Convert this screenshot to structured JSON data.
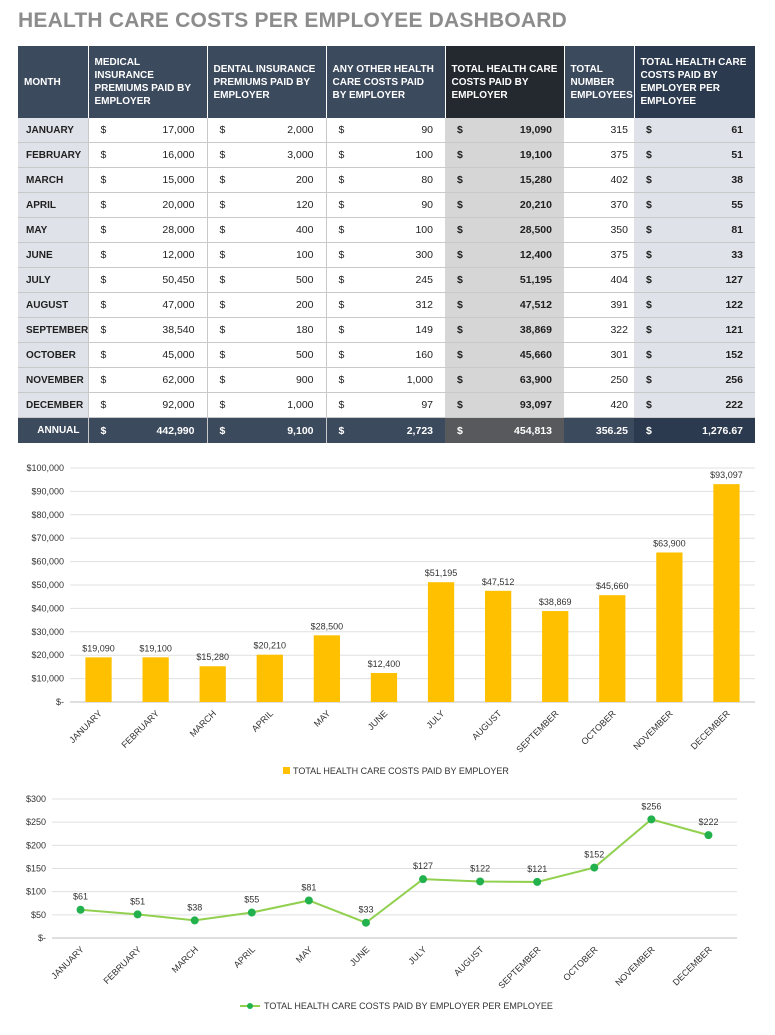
{
  "title": "HEALTH CARE COSTS PER EMPLOYEE DASHBOARD",
  "table": {
    "headers": [
      "MONTH",
      "MEDICAL INSURANCE PREMIUMS PAID BY EMPLOYER",
      "DENTAL INSURANCE PREMIUMS PAID BY EMPLOYER",
      "ANY OTHER HEALTH CARE COSTS PAID BY EMPLOYER",
      "TOTAL HEALTH CARE COSTS PAID BY EMPLOYER",
      "TOTAL NUMBER EMPLOYEES",
      "TOTAL HEALTH CARE COSTS PAID BY EMPLOYER PER EMPLOYEE"
    ],
    "currency": "$",
    "rows": [
      [
        "JANUARY",
        "17,000",
        "2,000",
        "90",
        "19,090",
        "315",
        "61"
      ],
      [
        "FEBRUARY",
        "16,000",
        "3,000",
        "100",
        "19,100",
        "375",
        "51"
      ],
      [
        "MARCH",
        "15,000",
        "200",
        "80",
        "15,280",
        "402",
        "38"
      ],
      [
        "APRIL",
        "20,000",
        "120",
        "90",
        "20,210",
        "370",
        "55"
      ],
      [
        "MAY",
        "28,000",
        "400",
        "100",
        "28,500",
        "350",
        "81"
      ],
      [
        "JUNE",
        "12,000",
        "100",
        "300",
        "12,400",
        "375",
        "33"
      ],
      [
        "JULY",
        "50,450",
        "500",
        "245",
        "51,195",
        "404",
        "127"
      ],
      [
        "AUGUST",
        "47,000",
        "200",
        "312",
        "47,512",
        "391",
        "122"
      ],
      [
        "SEPTEMBER",
        "38,540",
        "180",
        "149",
        "38,869",
        "322",
        "121"
      ],
      [
        "OCTOBER",
        "45,000",
        "500",
        "160",
        "45,660",
        "301",
        "152"
      ],
      [
        "NOVEMBER",
        "62,000",
        "900",
        "1,000",
        "63,900",
        "250",
        "256"
      ],
      [
        "DECEMBER",
        "92,000",
        "1,000",
        "97",
        "93,097",
        "420",
        "222"
      ]
    ],
    "annual": [
      "ANNUAL",
      "442,990",
      "9,100",
      "2,723",
      "454,813",
      "356.25",
      "1,276.67"
    ]
  },
  "chart_data": [
    {
      "type": "bar",
      "categories": [
        "JANUARY",
        "FEBRUARY",
        "MARCH",
        "APRIL",
        "MAY",
        "JUNE",
        "JULY",
        "AUGUST",
        "SEPTEMBER",
        "OCTOBER",
        "NOVEMBER",
        "DECEMBER"
      ],
      "values": [
        19090,
        19100,
        15280,
        20210,
        28500,
        12400,
        51195,
        47512,
        38869,
        45660,
        63900,
        93097
      ],
      "data_labels": [
        "$19,090",
        "$19,100",
        "$15,280",
        "$20,210",
        "$28,500",
        "$12,400",
        "$51,195",
        "$47,512",
        "$38,869",
        "$45,660",
        "$63,900",
        "$93,097"
      ],
      "yticks": [
        0,
        10000,
        20000,
        30000,
        40000,
        50000,
        60000,
        70000,
        80000,
        90000,
        100000
      ],
      "ytick_labels": [
        "$-",
        "$10,000",
        "$20,000",
        "$30,000",
        "$40,000",
        "$50,000",
        "$60,000",
        "$70,000",
        "$80,000",
        "$90,000",
        "$100,000"
      ],
      "ylim": [
        0,
        100000
      ],
      "legend": "TOTAL HEALTH CARE COSTS PAID BY EMPLOYER",
      "legend_position": "bottom",
      "color": "#ffc000",
      "grid": true
    },
    {
      "type": "line",
      "categories": [
        "JANUARY",
        "FEBRUARY",
        "MARCH",
        "APRIL",
        "MAY",
        "JUNE",
        "JULY",
        "AUGUST",
        "SEPTEMBER",
        "OCTOBER",
        "NOVEMBER",
        "DECEMBER"
      ],
      "values": [
        61,
        51,
        38,
        55,
        81,
        33,
        127,
        122,
        121,
        152,
        256,
        222
      ],
      "data_labels": [
        "$61",
        "$51",
        "$38",
        "$55",
        "$81",
        "$33",
        "$127",
        "$122",
        "$121",
        "$152",
        "$256",
        "$222"
      ],
      "yticks": [
        0,
        50,
        100,
        150,
        200,
        250,
        300
      ],
      "ytick_labels": [
        "$-",
        "$50",
        "$100",
        "$150",
        "$200",
        "$250",
        "$300"
      ],
      "ylim": [
        0,
        300
      ],
      "legend": "TOTAL HEALTH CARE COSTS PAID BY EMPLOYER PER EMPLOYEE",
      "legend_position": "bottom",
      "line_color": "#92d050",
      "marker_color": "#22b14c",
      "grid": true
    }
  ]
}
